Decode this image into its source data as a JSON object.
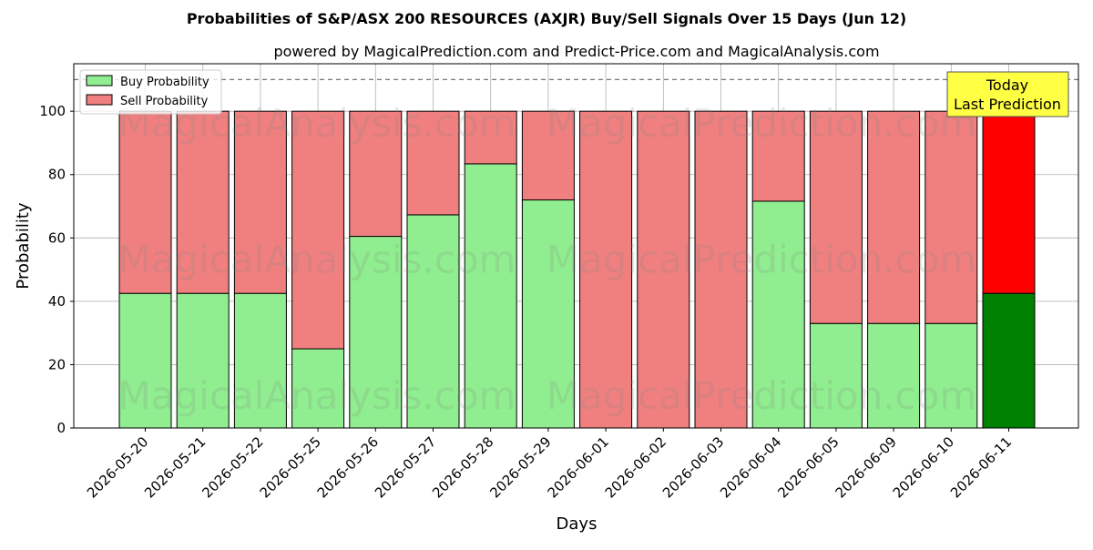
{
  "chart_data": {
    "type": "bar",
    "stacked": true,
    "title": "Probabilities of S&P/ASX 200 RESOURCES (AXJR) Buy/Sell Signals Over 15 Days (Jun 12)",
    "subtitle": "powered by MagicalPrediction.com and Predict-Price.com and MagicalAnalysis.com",
    "xlabel": "Days",
    "ylabel": "Probability",
    "ylim": [
      0,
      115
    ],
    "yticks": [
      0,
      20,
      40,
      60,
      80,
      100
    ],
    "grid": true,
    "legend_position": "top-left",
    "reference_line": 110,
    "categories": [
      "2026-05-20",
      "2026-05-21",
      "2026-05-22",
      "2026-05-25",
      "2026-05-26",
      "2026-05-27",
      "2026-05-28",
      "2026-05-29",
      "2026-06-01",
      "2026-06-02",
      "2026-06-03",
      "2026-06-04",
      "2026-06-05",
      "2026-06-09",
      "2026-06-10",
      "2026-06-11"
    ],
    "series": [
      {
        "name": "Buy Probability",
        "color": "#90ee90",
        "highlight_color": "#008000",
        "values": [
          42.5,
          42.5,
          42.5,
          25,
          60.5,
          67.3,
          83.4,
          72,
          0,
          0,
          0,
          71.6,
          33,
          33,
          33,
          42.5
        ]
      },
      {
        "name": "Sell Probability",
        "color": "#f08080",
        "highlight_color": "#ff0000",
        "values": [
          57.5,
          57.5,
          57.5,
          75,
          39.5,
          32.7,
          16.6,
          28,
          100,
          100,
          100,
          28.4,
          67,
          67,
          67,
          57.5
        ]
      }
    ],
    "annotation": {
      "lines": [
        "Today",
        "Last Prediction"
      ],
      "color": "#ffff44"
    },
    "watermarks": [
      "MagicalAnalysis.com",
      "MagicalPrediction.com"
    ]
  }
}
